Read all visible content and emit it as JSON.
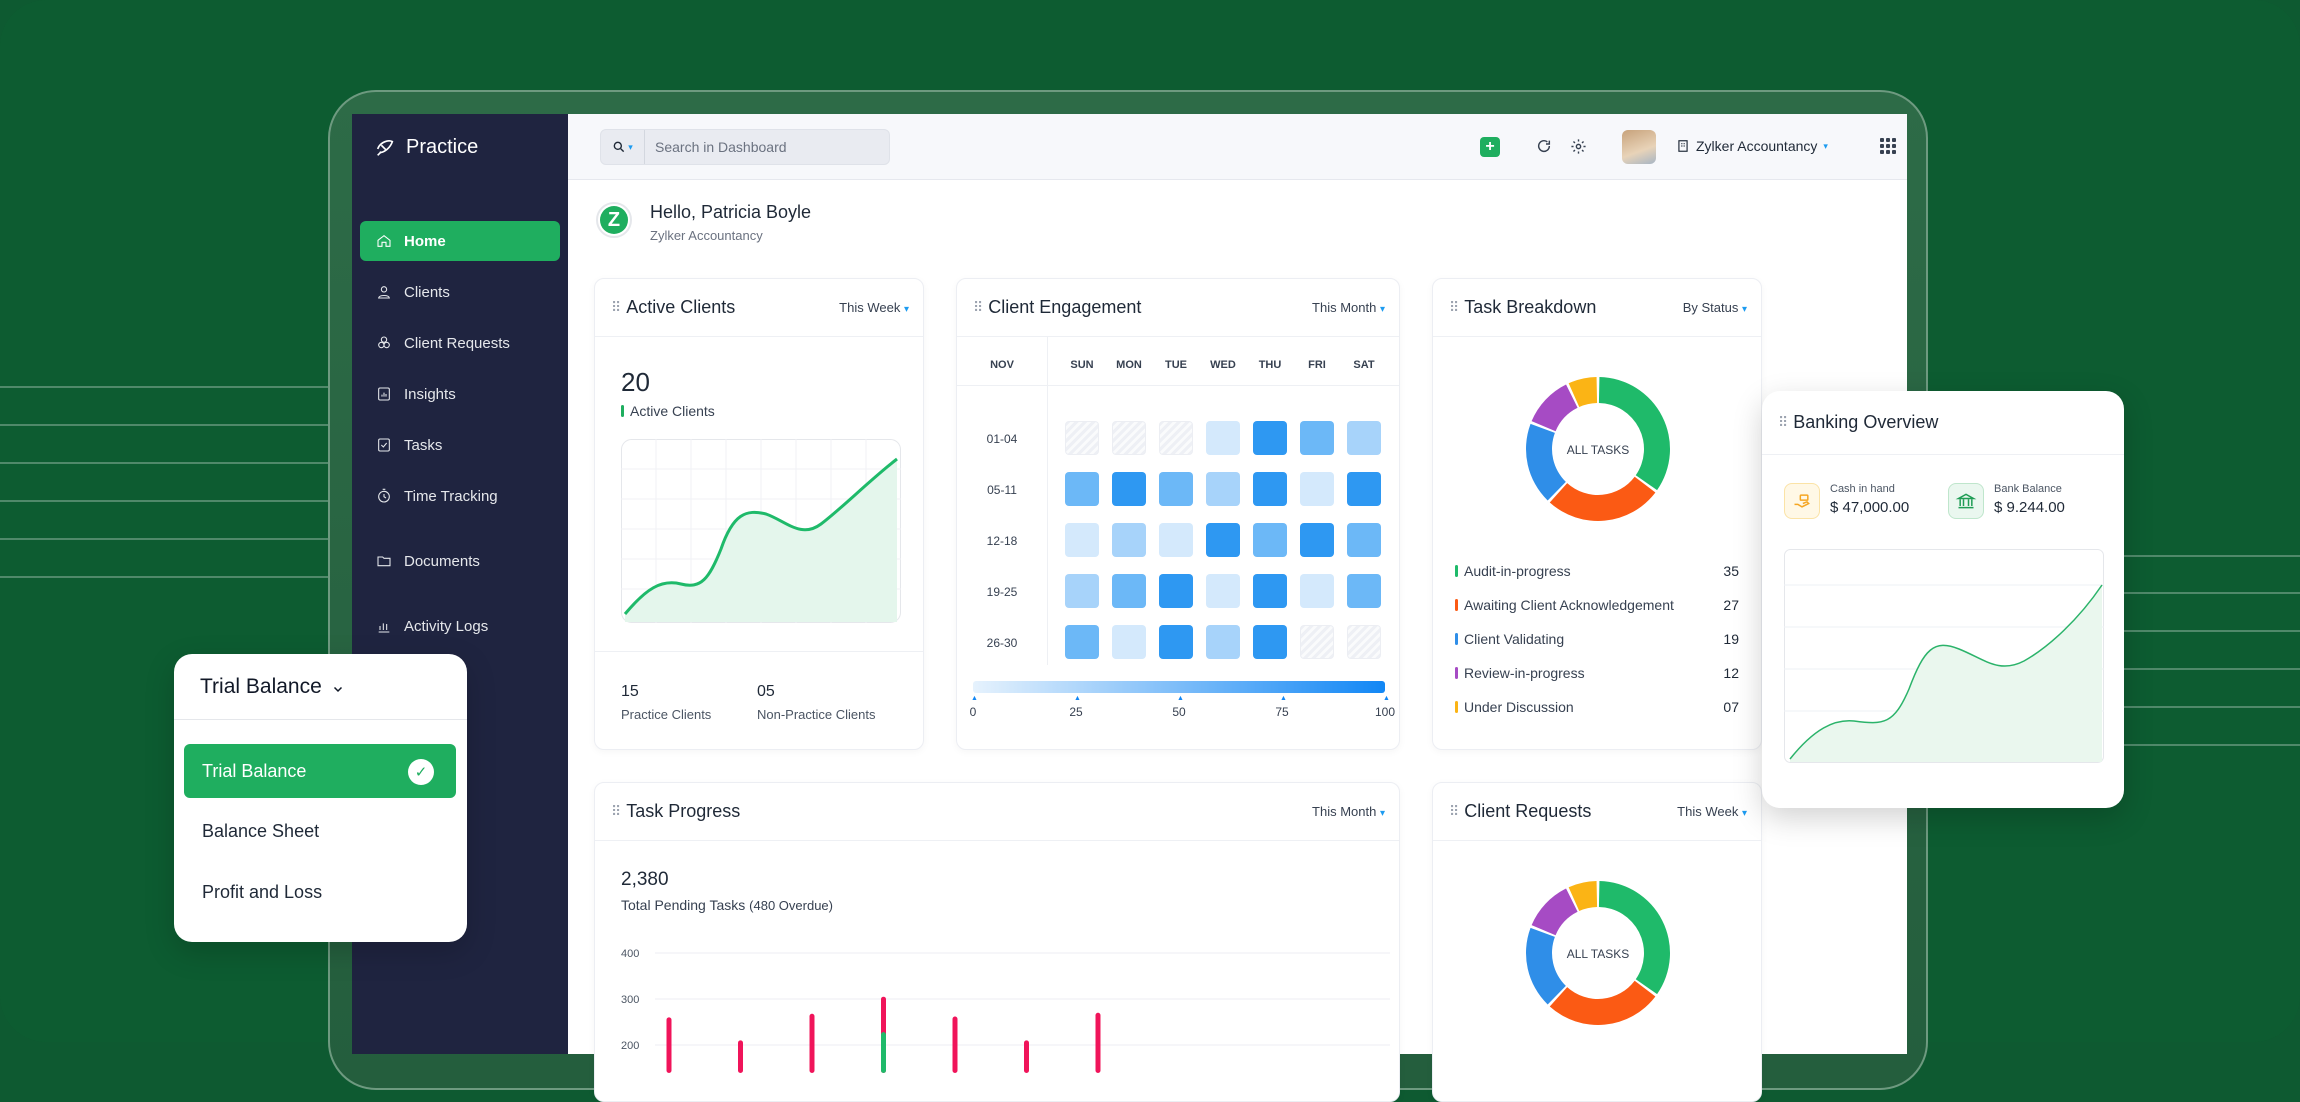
{
  "sidebar": {
    "brand": "Practice",
    "items": [
      {
        "label": "Home",
        "active": true,
        "icon": "home-icon"
      },
      {
        "label": "Clients",
        "icon": "user-icon"
      },
      {
        "label": "Client Requests",
        "icon": "requests-icon"
      },
      {
        "label": "Insights",
        "icon": "insights-icon"
      },
      {
        "label": "Tasks",
        "icon": "tasks-icon"
      },
      {
        "label": "Time Tracking",
        "icon": "timer-icon"
      },
      {
        "label": "Documents",
        "icon": "folder-icon"
      },
      {
        "label": "Activity Logs",
        "icon": "activity-icon"
      }
    ]
  },
  "topbar": {
    "search_placeholder": "Search in Dashboard",
    "org_name": "Zylker Accountancy"
  },
  "greeting": {
    "logo_letter": "Z",
    "hello": "Hello, Patricia Boyle",
    "org": "Zylker Accountancy"
  },
  "active_clients": {
    "title": "Active Clients",
    "filter": "This Week",
    "count": "20",
    "count_label": "Active Clients",
    "practice_count": "15",
    "practice_label": "Practice Clients",
    "non_practice_count": "05",
    "non_practice_label": "Non-Practice Clients"
  },
  "client_engagement": {
    "title": "Client Engagement",
    "filter": "This Month",
    "month": "NOV",
    "days": [
      "SUN",
      "MON",
      "TUE",
      "WED",
      "THU",
      "FRI",
      "SAT"
    ],
    "weeks": [
      {
        "label": "01-04",
        "levels": [
          0,
          0,
          0,
          1,
          4,
          3,
          2
        ]
      },
      {
        "label": "05-11",
        "levels": [
          3,
          4,
          3,
          2,
          4,
          1,
          4
        ]
      },
      {
        "label": "12-18",
        "levels": [
          1,
          2,
          1,
          4,
          3,
          4,
          3
        ]
      },
      {
        "label": "19-25",
        "levels": [
          2,
          3,
          4,
          1,
          4,
          1,
          3
        ]
      },
      {
        "label": "26-30",
        "levels": [
          3,
          1,
          4,
          2,
          4,
          0,
          0
        ]
      }
    ],
    "scale_ticks": [
      "0",
      "25",
      "50",
      "75",
      "100"
    ]
  },
  "task_breakdown": {
    "title": "Task Breakdown",
    "filter": "By Status",
    "center_label": "ALL TASKS",
    "items": [
      {
        "label": "Audit-in-progress",
        "value": "35",
        "color": "#1fba6a"
      },
      {
        "label": "Awaiting Client Acknowledgement",
        "value": "27",
        "color": "#fb5a14"
      },
      {
        "label": "Client Validating",
        "value": "19",
        "color": "#2f8ee8"
      },
      {
        "label": "Review-in-progress",
        "value": "12",
        "color": "#a64bc4"
      },
      {
        "label": "Under Discussion",
        "value": "07",
        "color": "#fbb415"
      }
    ]
  },
  "task_progress": {
    "title": "Task Progress",
    "filter": "This Month",
    "total": "2,380",
    "total_label": "Total Pending Tasks",
    "overdue": "(480 Overdue)",
    "y_ticks": [
      "400",
      "300",
      "200"
    ],
    "bars": [
      {
        "x": 1,
        "value": 260,
        "color": "#f0145a"
      },
      {
        "x": 2,
        "value": 210,
        "color": "#f0145a"
      },
      {
        "x": 3,
        "value": 268,
        "color": "#f0145a"
      },
      {
        "x": 4,
        "value": 305,
        "color": "#f0145a"
      },
      {
        "x": 4,
        "value": 228,
        "color": "#1fba6a"
      },
      {
        "x": 5,
        "value": 262,
        "color": "#f0145a"
      },
      {
        "x": 6,
        "value": 210,
        "color": "#f0145a"
      },
      {
        "x": 7,
        "value": 270,
        "color": "#f0145a"
      }
    ]
  },
  "client_requests": {
    "title": "Client Requests",
    "filter": "This Week",
    "center_label": "ALL TASKS"
  },
  "banking": {
    "title": "Banking Overview",
    "cash_label": "Cash in hand",
    "cash_value": "$ 47,000.00",
    "bank_label": "Bank Balance",
    "bank_value": "$ 9.244.00"
  },
  "trial_dropdown": {
    "title": "Trial Balance",
    "options": [
      "Trial Balance",
      "Balance Sheet",
      "Profit and Loss"
    ],
    "selected": 0
  }
}
